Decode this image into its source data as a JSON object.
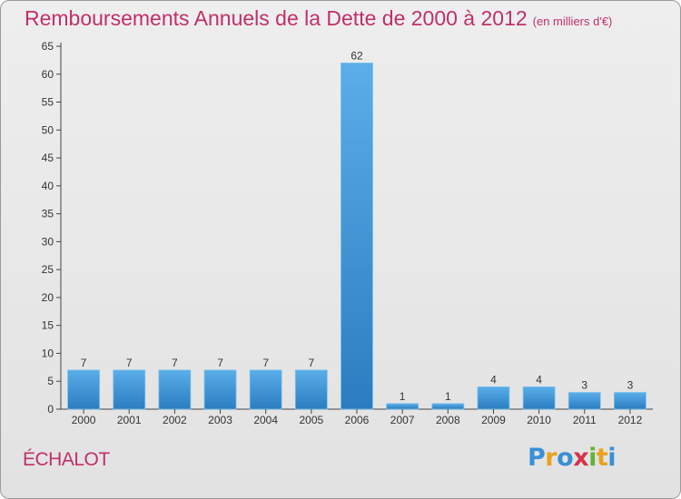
{
  "title": "Remboursements Annuels de la Dette de 2000 à 2012",
  "subtitle": "(en milliers d'€)",
  "place_name": "ÉCHALOT",
  "logo": {
    "text": "Proxiti",
    "letters": [
      {
        "ch": "P",
        "color": "#3a8fd6"
      },
      {
        "ch": "r",
        "color": "#e8a21e"
      },
      {
        "ch": "o",
        "color": "#3a8fd6"
      },
      {
        "ch": "x",
        "color": "#d8324b"
      },
      {
        "ch": "i",
        "color": "#62b33d"
      },
      {
        "ch": "t",
        "color": "#e8a21e"
      },
      {
        "ch": "i",
        "color": "#3a8fd6"
      }
    ]
  },
  "colors": {
    "accent": "#c0306b",
    "bar_light": "#5aaee9",
    "bar_dark": "#2a7dc0"
  },
  "chart_data": {
    "type": "bar",
    "categories": [
      "2000",
      "2001",
      "2002",
      "2003",
      "2004",
      "2005",
      "2006",
      "2007",
      "2008",
      "2009",
      "2010",
      "2011",
      "2012"
    ],
    "values": [
      7,
      7,
      7,
      7,
      7,
      7,
      62,
      1,
      1,
      4,
      4,
      3,
      3
    ],
    "ylim": [
      0,
      65
    ],
    "yticks": [
      0,
      5,
      10,
      15,
      20,
      25,
      30,
      35,
      40,
      45,
      50,
      55,
      60,
      65
    ],
    "grid": false,
    "xlabel": "",
    "ylabel": ""
  }
}
